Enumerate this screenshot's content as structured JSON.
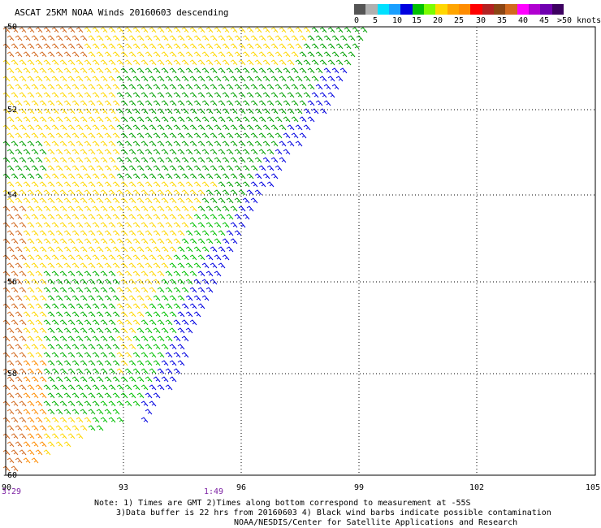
{
  "header": {
    "title": "ASCAT 25KM NOAA Winds 20160603 descending"
  },
  "colorbar": {
    "labels": [
      "0",
      "5",
      "10",
      "15",
      "20",
      "25",
      "30",
      "35",
      "40",
      "45",
      ">50 knots"
    ],
    "colors": [
      "#555555",
      "#b0b0b0",
      "#00e0ff",
      "#1a9fff",
      "#0000e0",
      "#00c000",
      "#7cfc00",
      "#ffd700",
      "#ffa500",
      "#ff8c00",
      "#ff0000",
      "#b22222",
      "#8b4513",
      "#d2691e",
      "#ff00ff",
      "#b000d0",
      "#7000b0",
      "#3c0060"
    ]
  },
  "axes": {
    "lat_labels": [
      "-50",
      "-52",
      "-54",
      "-56",
      "-58",
      "-60"
    ],
    "lon_labels": [
      "90",
      "93",
      "96",
      "99",
      "102",
      "105"
    ],
    "time_labels": [
      "3:29",
      "1:49"
    ]
  },
  "notes": {
    "line1": "Note: 1) Times are GMT 2)Times along bottom correspond to measurement at -55S",
    "line2": "3)Data buffer is 22 hrs from 20160603 4) Black wind barbs indicate possible contamination",
    "line3": "NOAA/NESDIS/Center for Satellite Applications and Research"
  }
}
